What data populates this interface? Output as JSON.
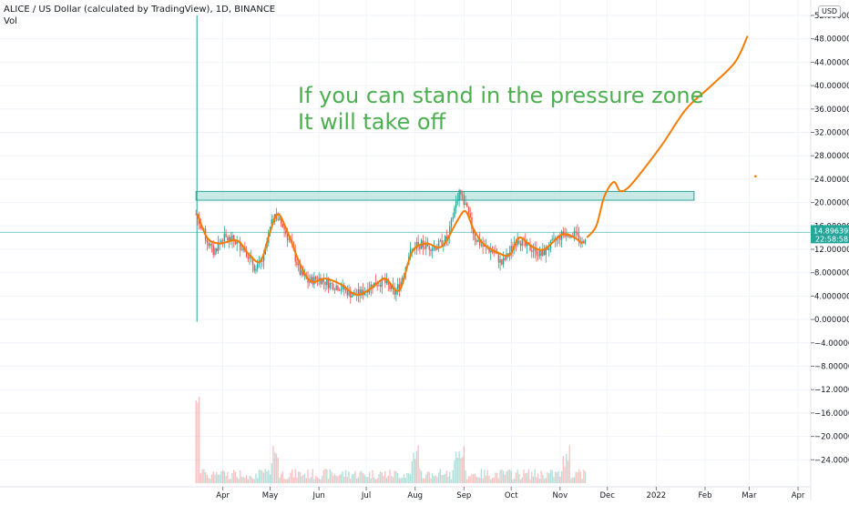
{
  "header": {
    "title": "ALICE / US Dollar (calculated by TradingView), 1D, BINANCE",
    "indicator": "Vol"
  },
  "currency_button": "USD",
  "price_label": {
    "price": "14.8963976",
    "countdown": "22:58:58",
    "color": "#26a69a"
  },
  "colors": {
    "up": "#26a69a",
    "down": "#ef5350",
    "projection": "#f57c00",
    "annotation": "#4caf50",
    "zone_fill": "#b2dfdb",
    "zone_stroke": "#26a69a"
  },
  "annotation": {
    "line1": "If you can stand in the pressure zone",
    "line2": "It will take off"
  },
  "chart_data": {
    "type": "candlestick",
    "symbol": "ALICEUSD",
    "timeframe": "1D",
    "exchange": "BINANCE",
    "ylim": [
      -26,
      54
    ],
    "yticks": [
      "52.0000000",
      "48.0000000",
      "44.0000000",
      "40.0000000",
      "36.0000000",
      "32.0000000",
      "28.0000000",
      "24.0000000",
      "20.0000000",
      "16.0000000",
      "12.0000000",
      "8.0000000",
      "4.0000000",
      "0.0000000",
      "−4.0000000",
      "−8.0000000",
      "−12.0000000",
      "−16.0000000",
      "−20.0000000",
      "−24.0000000"
    ],
    "yticks_values": [
      52,
      48,
      44,
      40,
      36,
      32,
      28,
      24,
      20,
      16,
      12,
      8,
      4,
      0,
      -4,
      -8,
      -12,
      -16,
      -20,
      -24
    ],
    "xticks": [
      "Apr",
      "May",
      "Jun",
      "Jul",
      "Aug",
      "Sep",
      "Oct",
      "Nov",
      "Dec",
      "2022",
      "Feb",
      "Mar",
      "Apr"
    ],
    "last_price": 14.8963976,
    "pressure_zone": {
      "low": 20.4,
      "high": 21.9,
      "start": "2021-03-15",
      "end": "2022-01-25"
    },
    "price_path": [
      {
        "date": "2021-03-15",
        "close": 18.0
      },
      {
        "date": "2021-03-18",
        "close": 16.0
      },
      {
        "date": "2021-03-22",
        "close": 13.5
      },
      {
        "date": "2021-03-26",
        "close": 11.5
      },
      {
        "date": "2021-04-01",
        "close": 14.0
      },
      {
        "date": "2021-04-08",
        "close": 13.5
      },
      {
        "date": "2021-04-15",
        "close": 12.0
      },
      {
        "date": "2021-04-22",
        "close": 8.5
      },
      {
        "date": "2021-04-27",
        "close": 10.5
      },
      {
        "date": "2021-05-01",
        "close": 15.5
      },
      {
        "date": "2021-05-04",
        "close": 18.0
      },
      {
        "date": "2021-05-09",
        "close": 16.0
      },
      {
        "date": "2021-05-14",
        "close": 13.0
      },
      {
        "date": "2021-05-20",
        "close": 8.0
      },
      {
        "date": "2021-05-25",
        "close": 6.5
      },
      {
        "date": "2021-06-01",
        "close": 7.0
      },
      {
        "date": "2021-06-08",
        "close": 6.0
      },
      {
        "date": "2021-06-15",
        "close": 5.5
      },
      {
        "date": "2021-06-22",
        "close": 4.2
      },
      {
        "date": "2021-06-28",
        "close": 4.5
      },
      {
        "date": "2021-07-05",
        "close": 6.0
      },
      {
        "date": "2021-07-12",
        "close": 6.5
      },
      {
        "date": "2021-07-19",
        "close": 4.5
      },
      {
        "date": "2021-07-23",
        "close": 6.5
      },
      {
        "date": "2021-07-28",
        "close": 11.0
      },
      {
        "date": "2021-08-02",
        "close": 13.0
      },
      {
        "date": "2021-08-08",
        "close": 12.5
      },
      {
        "date": "2021-08-15",
        "close": 12.5
      },
      {
        "date": "2021-08-22",
        "close": 14.0
      },
      {
        "date": "2021-08-26",
        "close": 19.0
      },
      {
        "date": "2021-08-29",
        "close": 22.0
      },
      {
        "date": "2021-09-02",
        "close": 19.5
      },
      {
        "date": "2021-09-08",
        "close": 14.0
      },
      {
        "date": "2021-09-13",
        "close": 12.5
      },
      {
        "date": "2021-09-20",
        "close": 11.5
      },
      {
        "date": "2021-09-25",
        "close": 9.5
      },
      {
        "date": "2021-09-30",
        "close": 11.5
      },
      {
        "date": "2021-10-05",
        "close": 14.0
      },
      {
        "date": "2021-10-10",
        "close": 12.5
      },
      {
        "date": "2021-10-15",
        "close": 12.0
      },
      {
        "date": "2021-10-20",
        "close": 11.0
      },
      {
        "date": "2021-10-25",
        "close": 12.5
      },
      {
        "date": "2021-10-31",
        "close": 14.0
      },
      {
        "date": "2021-11-05",
        "close": 15.0
      },
      {
        "date": "2021-11-10",
        "close": 14.5
      },
      {
        "date": "2021-11-15",
        "close": 13.0
      },
      {
        "date": "2021-11-18",
        "close": 14.9
      }
    ],
    "projection_path": [
      {
        "date": "2021-11-18",
        "value": 14.0
      },
      {
        "date": "2021-11-24",
        "value": 16.0
      },
      {
        "date": "2021-11-29",
        "value": 21.0
      },
      {
        "date": "2021-12-05",
        "value": 23.5
      },
      {
        "date": "2021-12-09",
        "value": 22.0
      },
      {
        "date": "2021-12-14",
        "value": 22.5
      },
      {
        "date": "2021-12-22",
        "value": 25.0
      },
      {
        "date": "2022-01-05",
        "value": 30.0
      },
      {
        "date": "2022-01-20",
        "value": 36.0
      },
      {
        "date": "2022-02-05",
        "value": 40.0
      },
      {
        "date": "2022-02-20",
        "value": 44.0
      },
      {
        "date": "2022-02-28",
        "value": 48.5
      }
    ],
    "smoothed_path": [
      {
        "date": "2021-03-16",
        "value": 18.0
      },
      {
        "date": "2021-03-22",
        "value": 14.0
      },
      {
        "date": "2021-03-30",
        "value": 13.0
      },
      {
        "date": "2021-04-10",
        "value": 13.5
      },
      {
        "date": "2021-04-18",
        "value": 11.0
      },
      {
        "date": "2021-04-25",
        "value": 10.0
      },
      {
        "date": "2021-05-01",
        "value": 15.0
      },
      {
        "date": "2021-05-06",
        "value": 18.0
      },
      {
        "date": "2021-05-12",
        "value": 15.0
      },
      {
        "date": "2021-05-20",
        "value": 9.5
      },
      {
        "date": "2021-05-27",
        "value": 6.5
      },
      {
        "date": "2021-06-05",
        "value": 7.0
      },
      {
        "date": "2021-06-15",
        "value": 6.0
      },
      {
        "date": "2021-06-25",
        "value": 4.2
      },
      {
        "date": "2021-07-05",
        "value": 5.5
      },
      {
        "date": "2021-07-13",
        "value": 7.0
      },
      {
        "date": "2021-07-22",
        "value": 5.0
      },
      {
        "date": "2021-07-30",
        "value": 11.5
      },
      {
        "date": "2021-08-08",
        "value": 13.0
      },
      {
        "date": "2021-08-18",
        "value": 12.5
      },
      {
        "date": "2021-08-28",
        "value": 17.0
      },
      {
        "date": "2021-09-02",
        "value": 18.5
      },
      {
        "date": "2021-09-07",
        "value": 15.5
      },
      {
        "date": "2021-09-13",
        "value": 13.0
      },
      {
        "date": "2021-09-22",
        "value": 11.5
      },
      {
        "date": "2021-09-30",
        "value": 11.0
      },
      {
        "date": "2021-10-06",
        "value": 14.0
      },
      {
        "date": "2021-10-14",
        "value": 12.5
      },
      {
        "date": "2021-10-22",
        "value": 12.0
      },
      {
        "date": "2021-11-02",
        "value": 14.5
      },
      {
        "date": "2021-11-10",
        "value": 14.0
      },
      {
        "date": "2021-11-15",
        "value": 13.0
      }
    ],
    "volume_scale_max": 1
  }
}
